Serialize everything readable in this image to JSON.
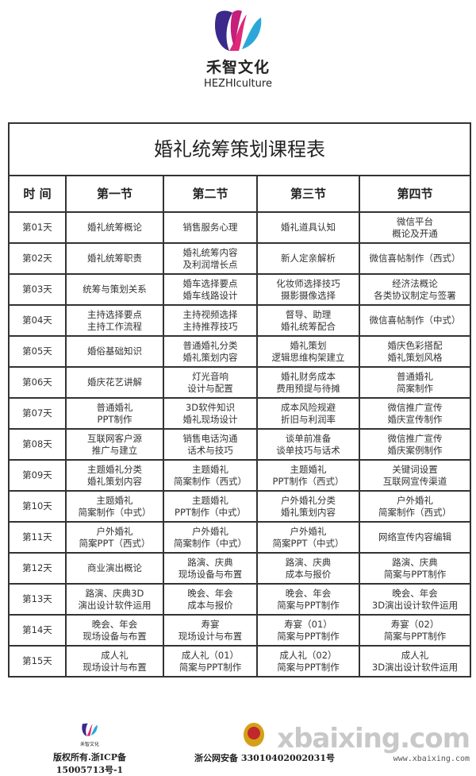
{
  "brand": {
    "name_cn": "禾智文化",
    "name_en": "HEZHIculture",
    "colors": [
      "#e0287a",
      "#3b2a8c",
      "#2aa7d8"
    ]
  },
  "table": {
    "title": "婚礼统筹策划课程表",
    "headers": [
      "时 间",
      "第一节",
      "第二节",
      "第三节",
      "第四节"
    ],
    "rows": [
      [
        "第01天",
        "婚礼统筹概论",
        "销售服务心理",
        "婚礼道具认知",
        "微信平台\n概论及开通"
      ],
      [
        "第02天",
        "婚礼统筹职责",
        "婚礼统筹内容\n及利润增长点",
        "新人定亲解析",
        "微信喜帖制作（西式）"
      ],
      [
        "第03天",
        "统筹与策划关系",
        "婚车选择要点\n婚车线路设计",
        "化妆师选择技巧\n摄影摄像选择",
        "经济法概论\n各类协议制定与签署"
      ],
      [
        "第04天",
        "主持选择要点\n主持工作流程",
        "主持视频选择\n主持推荐技巧",
        "督导、助理\n婚礼统筹配合",
        "微信喜帖制作（中式）"
      ],
      [
        "第05天",
        "婚俗基础知识",
        "普通婚礼分类\n婚礼策划内容",
        "婚礼策划\n逻辑思维构架建立",
        "婚庆色彩搭配\n婚礼策划风格"
      ],
      [
        "第06天",
        "婚庆花艺讲解",
        "灯光音响\n设计与配置",
        "婚礼财务成本\n费用预提与待摊",
        "普通婚礼\n简案制作"
      ],
      [
        "第07天",
        "普通婚礼\nPPT制作",
        "3D软件知识\n婚礼现场设计",
        "成本风险规避\n折旧与利润率",
        "微信推广宣传\n婚庆宣传制作"
      ],
      [
        "第08天",
        "互联网客户源\n推广与建立",
        "销售电话沟通\n话术与技巧",
        "谈单前准备\n谈单技巧与话术",
        "微信推广宣传\n婚庆案例制作"
      ],
      [
        "第09天",
        "主题婚礼分类\n婚礼策划内容",
        "主题婚礼\n简案制作（西式）",
        "主题婚礼\nPPT制作（西式）",
        "关键词设置\n互联网宣传渠道"
      ],
      [
        "第10天",
        "主题婚礼\n简案制作（中式）",
        "主题婚礼\nPPT制作（中式）",
        "户外婚礼分类\n婚礼策划内容",
        "户外婚礼\n简案制作（西式）"
      ],
      [
        "第11天",
        "户外婚礼\n简案PPT（西式）",
        "户外婚礼\n简案制作（中式）",
        "户外婚礼\n简案PPT（中式）",
        "网络宣传内容编辑"
      ],
      [
        "第12天",
        "商业演出概论",
        "路演、庆典\n现场设备与布置",
        "路演、庆典\n成本与报价",
        "路演、庆典\n简案与PPT制作"
      ],
      [
        "第13天",
        "路演、庆典3D\n演出设计软件运用",
        "晚会、年会\n成本与报价",
        "晚会、年会\n简案与PPT制作",
        "晚会、年会\n3D演出设计软件运用"
      ],
      [
        "第14天",
        "晚会、年会\n现场设备与布置",
        "寿宴\n现场设计与布置",
        "寿宴（01）\n简案与PPT制作",
        "寿宴（02）\n简案与PPT制作"
      ],
      [
        "第15天",
        "成人礼\n现场设计与布置",
        "成人礼（01）\n简案与PPT制作",
        "成人礼（02）\n简案与PPT制作",
        "成人礼\n3D演出设计软件运用"
      ]
    ]
  },
  "footer": {
    "copyright": "版权所有.浙ICP备15005713号-1",
    "police": "浙公网安备 33010402002031号",
    "watermark": "xbaixing.com",
    "watermark_url": "www.xbaixing.com"
  }
}
